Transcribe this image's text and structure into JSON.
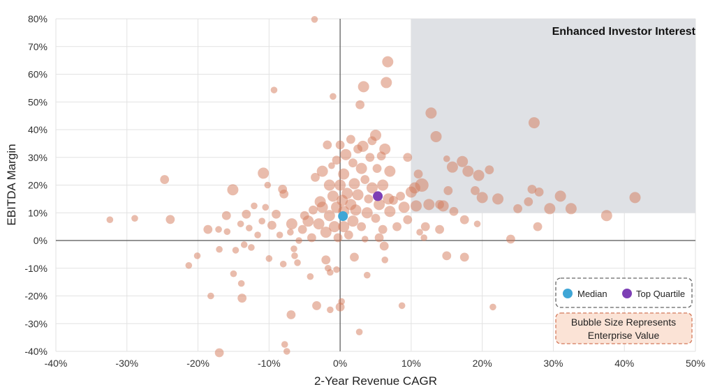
{
  "chart_data": {
    "type": "scatter",
    "title": "",
    "xlabel": "2-Year Revenue CAGR",
    "ylabel": "EBITDA Margin",
    "xlim": [
      -40,
      50
    ],
    "ylim": [
      -40,
      80
    ],
    "x_ticks": [
      -40,
      -30,
      -20,
      -10,
      0,
      10,
      20,
      30,
      40,
      50
    ],
    "y_ticks": [
      -40,
      -30,
      -20,
      -10,
      0,
      10,
      20,
      30,
      40,
      50,
      60,
      70,
      80
    ],
    "x_tick_labels": [
      "-40%",
      "-30%",
      "-20%",
      "-10%",
      "0%",
      "10%",
      "20%",
      "30%",
      "40%",
      "50%"
    ],
    "y_tick_labels": [
      "-40%",
      "-30%",
      "-20%",
      "-10%",
      "0%",
      "10%",
      "20%",
      "30%",
      "40%",
      "50%",
      "60%",
      "70%",
      "80%"
    ],
    "grid": true,
    "region": {
      "x_min": 10,
      "x_max": 50,
      "y_min": 10,
      "y_max": 80,
      "label": "Enhanced Investor Interest",
      "color": "#dfe1e5"
    },
    "bubble_color": "#d4795a",
    "size_note": [
      "Bubble Size Represents",
      "Enterprise Value"
    ],
    "legend": [
      {
        "label": "Median",
        "color": "#3fa6d6"
      },
      {
        "label": "Top Quartile",
        "color": "#7d3fb5"
      }
    ],
    "markers": [
      {
        "name": "Median",
        "x": 0.4,
        "y": 8.8,
        "color": "#3fa6d6"
      },
      {
        "name": "Top Quartile",
        "x": 5.3,
        "y": 16.0,
        "color": "#7d3fb5"
      }
    ],
    "points": [
      [
        -32.4,
        7.5,
        3
      ],
      [
        -28.9,
        8.0,
        3
      ],
      [
        -24.7,
        22.0,
        4
      ],
      [
        -23.9,
        7.6,
        4
      ],
      [
        -21.3,
        -9.0,
        3
      ],
      [
        -20.1,
        -5.5,
        3
      ],
      [
        -18.6,
        4.0,
        4
      ],
      [
        -18.2,
        -20.0,
        3
      ],
      [
        -17.1,
        4.0,
        3
      ],
      [
        -17.0,
        -3.2,
        3
      ],
      [
        -17.0,
        -40.5,
        4
      ],
      [
        -16.0,
        9.0,
        4
      ],
      [
        -15.9,
        3.2,
        3
      ],
      [
        -15.1,
        18.3,
        5
      ],
      [
        -15.0,
        -12.0,
        3
      ],
      [
        -14.7,
        -3.5,
        3
      ],
      [
        -14.0,
        6.0,
        3
      ],
      [
        -13.9,
        -15.5,
        3
      ],
      [
        -13.8,
        -20.8,
        4
      ],
      [
        -13.5,
        -1.5,
        3
      ],
      [
        -13.2,
        9.5,
        4
      ],
      [
        -12.8,
        4.5,
        3
      ],
      [
        -12.5,
        -2.5,
        3
      ],
      [
        -12.1,
        12.5,
        3
      ],
      [
        -11.6,
        2.0,
        3
      ],
      [
        -11.0,
        7.0,
        3
      ],
      [
        -10.8,
        24.3,
        5
      ],
      [
        -10.5,
        12.0,
        3
      ],
      [
        -10.2,
        20.0,
        3
      ],
      [
        -10.0,
        -6.5,
        3
      ],
      [
        -9.6,
        5.5,
        4
      ],
      [
        -9.3,
        54.3,
        3
      ],
      [
        -9.0,
        9.5,
        4
      ],
      [
        -8.5,
        2.0,
        3
      ],
      [
        -8.1,
        18.5,
        4
      ],
      [
        -8.0,
        -8.5,
        3
      ],
      [
        -7.9,
        16.8,
        4
      ],
      [
        -7.8,
        -37.5,
        3
      ],
      [
        -7.5,
        -40.0,
        3
      ],
      [
        -7.0,
        3.0,
        3
      ],
      [
        -6.8,
        6.0,
        5
      ],
      [
        -6.5,
        -3.0,
        3
      ],
      [
        -6.4,
        -5.5,
        3
      ],
      [
        -6.0,
        -8.0,
        3
      ],
      [
        -5.8,
        0.0,
        3
      ],
      [
        -6.9,
        -26.8,
        4
      ],
      [
        -5.3,
        4.0,
        4
      ],
      [
        -5.0,
        9.0,
        4
      ],
      [
        -4.5,
        7.0,
        5
      ],
      [
        -4.2,
        -13.0,
        3
      ],
      [
        -4.0,
        1.0,
        4
      ],
      [
        -3.8,
        11.0,
        4
      ],
      [
        -3.6,
        79.8,
        3
      ],
      [
        -3.5,
        22.8,
        4
      ],
      [
        -3.3,
        -23.5,
        4
      ],
      [
        -3.0,
        6.0,
        5
      ],
      [
        -2.8,
        14.0,
        5
      ],
      [
        -2.5,
        25.0,
        5
      ],
      [
        -2.5,
        12.0,
        5
      ],
      [
        -2.0,
        3.0,
        5
      ],
      [
        -2.0,
        -7.0,
        4
      ],
      [
        -1.8,
        34.5,
        4
      ],
      [
        -1.7,
        -10.0,
        3
      ],
      [
        -1.5,
        20.0,
        5
      ],
      [
        -1.5,
        9.0,
        5
      ],
      [
        -1.4,
        -11.5,
        3
      ],
      [
        -1.4,
        -25.0,
        3
      ],
      [
        -1.2,
        27.0,
        3
      ],
      [
        -1.0,
        16.0,
        5
      ],
      [
        -1.0,
        52.0,
        3
      ],
      [
        -0.8,
        5.0,
        5
      ],
      [
        -0.5,
        12.0,
        5
      ],
      [
        -0.5,
        29.0,
        4
      ],
      [
        -0.5,
        -10.5,
        3
      ],
      [
        -0.3,
        1.0,
        4
      ],
      [
        0.0,
        -24.0,
        4
      ],
      [
        0.0,
        20.0,
        5
      ],
      [
        0.0,
        34.5,
        4
      ],
      [
        0.2,
        -22.0,
        3
      ],
      [
        0.3,
        14.5,
        5
      ],
      [
        0.5,
        24.0,
        5
      ],
      [
        0.5,
        5.0,
        5
      ],
      [
        0.5,
        10.5,
        5
      ],
      [
        0.8,
        31.0,
        5
      ],
      [
        1.0,
        17.0,
        5
      ],
      [
        1.2,
        2.0,
        4
      ],
      [
        1.5,
        13.0,
        5
      ],
      [
        1.5,
        36.5,
        4
      ],
      [
        1.8,
        28.0,
        4
      ],
      [
        1.8,
        7.0,
        5
      ],
      [
        2.0,
        -6.0,
        4
      ],
      [
        2.0,
        20.5,
        5
      ],
      [
        2.2,
        11.0,
        5
      ],
      [
        2.5,
        33.0,
        4
      ],
      [
        2.5,
        16.5,
        5
      ],
      [
        2.7,
        -33.0,
        3
      ],
      [
        2.8,
        49.0,
        4
      ],
      [
        3.0,
        26.0,
        5
      ],
      [
        3.0,
        5.0,
        4
      ],
      [
        3.2,
        34.0,
        5
      ],
      [
        3.3,
        55.5,
        5
      ],
      [
        3.5,
        22.0,
        4
      ],
      [
        3.5,
        0.5,
        3
      ],
      [
        3.8,
        -12.5,
        3
      ],
      [
        3.8,
        10.0,
        5
      ],
      [
        4.0,
        15.0,
        4
      ],
      [
        4.2,
        30.0,
        4
      ],
      [
        4.5,
        36.0,
        4
      ],
      [
        4.5,
        19.0,
        5
      ],
      [
        5.0,
        38.0,
        5
      ],
      [
        5.0,
        8.0,
        4
      ],
      [
        5.2,
        26.0,
        4
      ],
      [
        5.5,
        13.0,
        5
      ],
      [
        5.5,
        1.0,
        4
      ],
      [
        5.8,
        30.5,
        4
      ],
      [
        6.0,
        20.0,
        5
      ],
      [
        6.0,
        4.0,
        4
      ],
      [
        6.2,
        -2.0,
        4
      ],
      [
        6.3,
        33.0,
        5
      ],
      [
        6.3,
        -7.0,
        3
      ],
      [
        6.5,
        57.0,
        5
      ],
      [
        6.7,
        64.5,
        5
      ],
      [
        6.8,
        15.0,
        5
      ],
      [
        7.0,
        25.0,
        5
      ],
      [
        7.0,
        10.5,
        5
      ],
      [
        7.5,
        14.5,
        4
      ],
      [
        8.0,
        5.0,
        4
      ],
      [
        8.5,
        16.0,
        4
      ],
      [
        8.7,
        -23.5,
        3
      ],
      [
        9.0,
        12.0,
        5
      ],
      [
        9.5,
        30.0,
        4
      ],
      [
        9.5,
        7.5,
        4
      ],
      [
        10.0,
        17.5,
        5
      ],
      [
        10.5,
        19.0,
        5
      ],
      [
        10.7,
        12.5,
        5
      ],
      [
        11.0,
        24.0,
        4
      ],
      [
        11.2,
        3.0,
        3
      ],
      [
        11.5,
        20.0,
        6
      ],
      [
        11.8,
        1.0,
        3
      ],
      [
        12.0,
        5.0,
        4
      ],
      [
        12.5,
        13.0,
        5
      ],
      [
        12.8,
        46.0,
        5
      ],
      [
        13.5,
        37.5,
        5
      ],
      [
        14.0,
        13.0,
        4
      ],
      [
        14.0,
        4.0,
        4
      ],
      [
        14.5,
        12.5,
        5
      ],
      [
        15.0,
        -5.5,
        4
      ],
      [
        15.0,
        29.5,
        3
      ],
      [
        15.2,
        18.0,
        4
      ],
      [
        15.8,
        26.5,
        5
      ],
      [
        16.0,
        10.5,
        4
      ],
      [
        17.2,
        28.5,
        5
      ],
      [
        17.5,
        -6.0,
        4
      ],
      [
        17.5,
        7.5,
        4
      ],
      [
        18.0,
        25.0,
        5
      ],
      [
        19.0,
        18.0,
        4
      ],
      [
        19.3,
        6.0,
        3
      ],
      [
        19.5,
        23.5,
        5
      ],
      [
        20.0,
        15.5,
        5
      ],
      [
        21.0,
        25.5,
        4
      ],
      [
        21.5,
        -24.0,
        3
      ],
      [
        22.2,
        15.0,
        5
      ],
      [
        24.0,
        0.5,
        4
      ],
      [
        25.0,
        11.5,
        4
      ],
      [
        26.5,
        14.0,
        4
      ],
      [
        27.0,
        18.5,
        4
      ],
      [
        27.3,
        42.5,
        5
      ],
      [
        27.8,
        5.0,
        4
      ],
      [
        28.0,
        17.5,
        4
      ],
      [
        29.5,
        11.5,
        5
      ],
      [
        31.0,
        16.0,
        5
      ],
      [
        32.5,
        11.5,
        5
      ],
      [
        37.5,
        9.0,
        5
      ],
      [
        41.5,
        15.5,
        5
      ]
    ]
  }
}
